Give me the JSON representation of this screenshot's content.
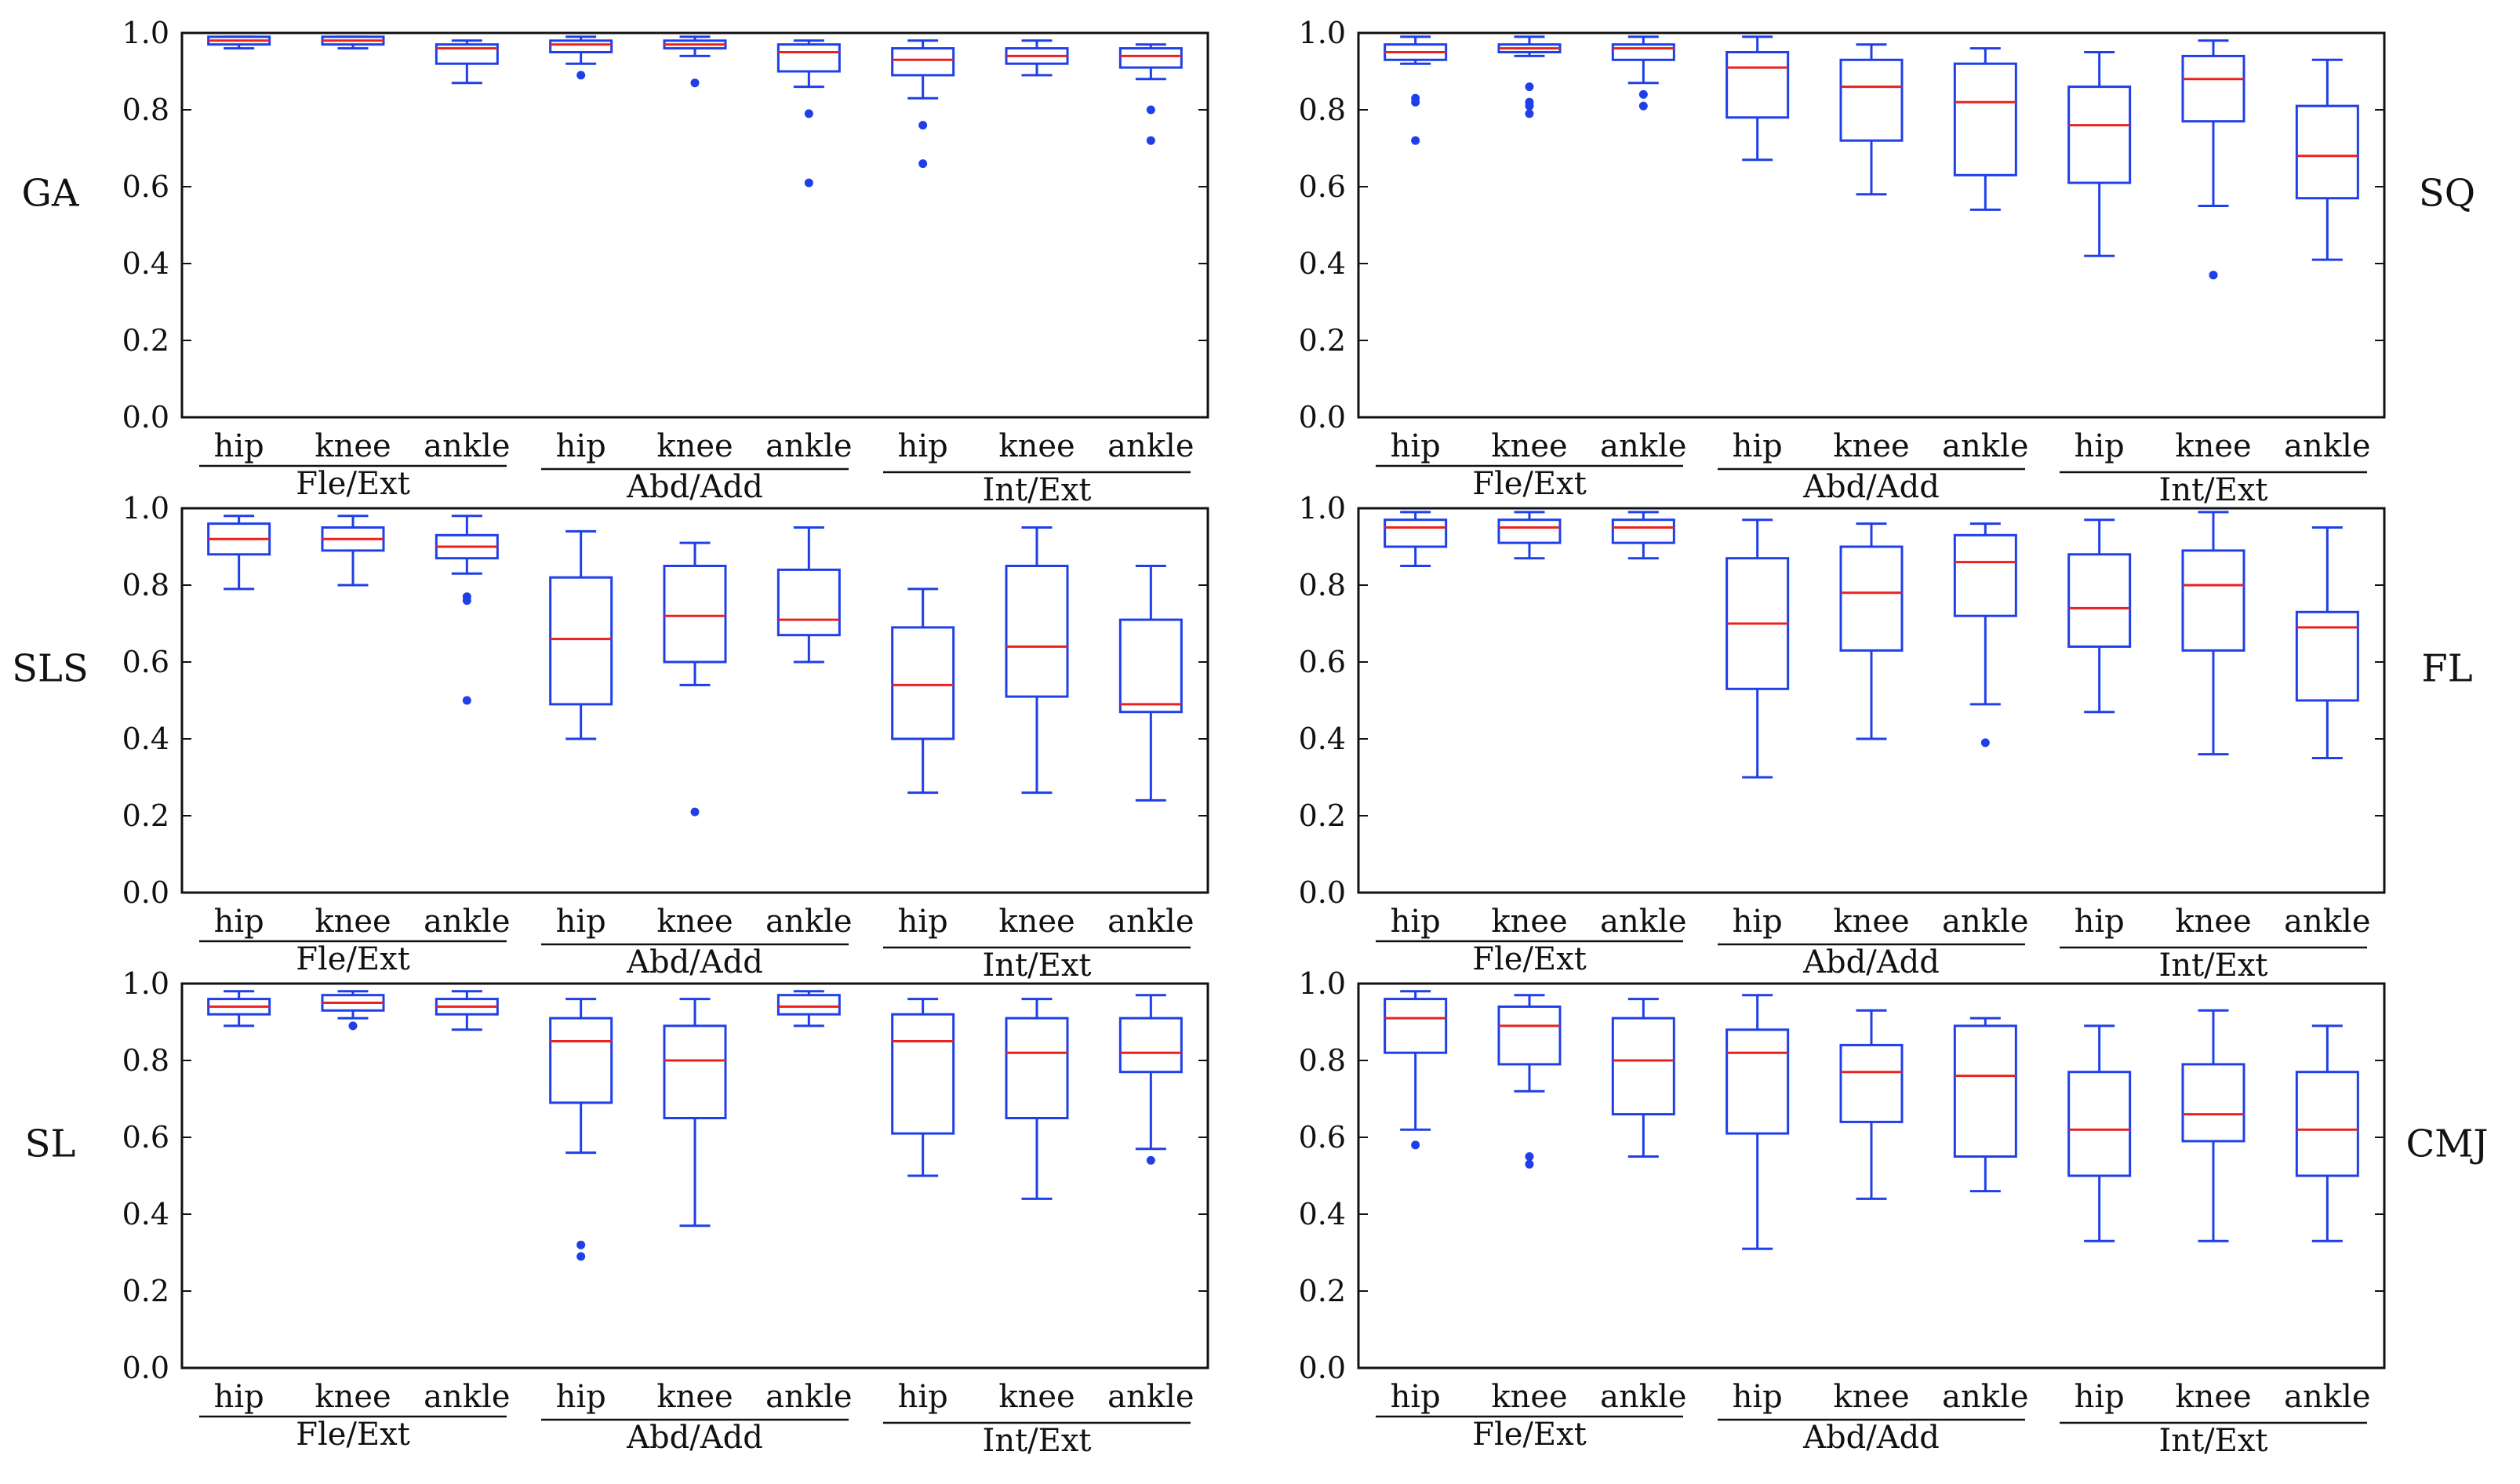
{
  "colors": {
    "box": "#1f3fe8",
    "median": "#e8231f",
    "frame": "#111111",
    "background": "#ffffff"
  },
  "categories": [
    "hip",
    "knee",
    "ankle",
    "hip",
    "knee",
    "ankle",
    "hip",
    "knee",
    "ankle"
  ],
  "groups": [
    "Fle/Ext",
    "Abd/Add",
    "Int/Ext"
  ],
  "chart_data": [
    {
      "type": "box",
      "label": "GA",
      "label_side": "left",
      "ylim": [
        0,
        1.0
      ],
      "yticks": [
        "0.0",
        "0.2",
        "0.4",
        "0.6",
        "0.8",
        "1.0"
      ],
      "boxes": [
        {
          "min": 0.96,
          "q1": 0.97,
          "median": 0.98,
          "q3": 0.99,
          "max": 0.99,
          "outliers": []
        },
        {
          "min": 0.96,
          "q1": 0.97,
          "median": 0.98,
          "q3": 0.99,
          "max": 0.99,
          "outliers": []
        },
        {
          "min": 0.87,
          "q1": 0.92,
          "median": 0.96,
          "q3": 0.97,
          "max": 0.98,
          "outliers": []
        },
        {
          "min": 0.92,
          "q1": 0.95,
          "median": 0.97,
          "q3": 0.98,
          "max": 0.99,
          "outliers": [
            0.89
          ]
        },
        {
          "min": 0.94,
          "q1": 0.96,
          "median": 0.97,
          "q3": 0.98,
          "max": 0.99,
          "outliers": [
            0.87
          ]
        },
        {
          "min": 0.86,
          "q1": 0.9,
          "median": 0.95,
          "q3": 0.97,
          "max": 0.98,
          "outliers": [
            0.79,
            0.61
          ]
        },
        {
          "min": 0.83,
          "q1": 0.89,
          "median": 0.93,
          "q3": 0.96,
          "max": 0.98,
          "outliers": [
            0.76,
            0.66
          ]
        },
        {
          "min": 0.89,
          "q1": 0.92,
          "median": 0.94,
          "q3": 0.96,
          "max": 0.98,
          "outliers": []
        },
        {
          "min": 0.88,
          "q1": 0.91,
          "median": 0.94,
          "q3": 0.96,
          "max": 0.97,
          "outliers": [
            0.8,
            0.72
          ]
        }
      ]
    },
    {
      "type": "box",
      "label": "SQ",
      "label_side": "right",
      "ylim": [
        0,
        1.0
      ],
      "yticks": [
        "0.0",
        "0.2",
        "0.4",
        "0.6",
        "0.8",
        "1.0"
      ],
      "boxes": [
        {
          "min": 0.92,
          "q1": 0.93,
          "median": 0.95,
          "q3": 0.97,
          "max": 0.99,
          "outliers": [
            0.83,
            0.82,
            0.72
          ]
        },
        {
          "min": 0.94,
          "q1": 0.95,
          "median": 0.96,
          "q3": 0.97,
          "max": 0.99,
          "outliers": [
            0.86,
            0.82,
            0.81,
            0.79
          ]
        },
        {
          "min": 0.87,
          "q1": 0.93,
          "median": 0.96,
          "q3": 0.97,
          "max": 0.99,
          "outliers": [
            0.84,
            0.81
          ]
        },
        {
          "min": 0.67,
          "q1": 0.78,
          "median": 0.91,
          "q3": 0.95,
          "max": 0.99,
          "outliers": []
        },
        {
          "min": 0.58,
          "q1": 0.72,
          "median": 0.86,
          "q3": 0.93,
          "max": 0.97,
          "outliers": []
        },
        {
          "min": 0.54,
          "q1": 0.63,
          "median": 0.82,
          "q3": 0.92,
          "max": 0.96,
          "outliers": []
        },
        {
          "min": 0.42,
          "q1": 0.61,
          "median": 0.76,
          "q3": 0.86,
          "max": 0.95,
          "outliers": []
        },
        {
          "min": 0.55,
          "q1": 0.77,
          "median": 0.88,
          "q3": 0.94,
          "max": 0.98,
          "outliers": [
            0.37
          ]
        },
        {
          "min": 0.41,
          "q1": 0.57,
          "median": 0.68,
          "q3": 0.81,
          "max": 0.93,
          "outliers": []
        }
      ]
    },
    {
      "type": "box",
      "label": "SLS",
      "label_side": "left",
      "ylim": [
        0,
        1.0
      ],
      "yticks": [
        "0.0",
        "0.2",
        "0.4",
        "0.6",
        "0.8",
        "1.0"
      ],
      "boxes": [
        {
          "min": 0.79,
          "q1": 0.88,
          "median": 0.92,
          "q3": 0.96,
          "max": 0.98,
          "outliers": []
        },
        {
          "min": 0.8,
          "q1": 0.89,
          "median": 0.92,
          "q3": 0.95,
          "max": 0.98,
          "outliers": []
        },
        {
          "min": 0.83,
          "q1": 0.87,
          "median": 0.9,
          "q3": 0.93,
          "max": 0.98,
          "outliers": [
            0.77,
            0.76,
            0.5
          ]
        },
        {
          "min": 0.4,
          "q1": 0.49,
          "median": 0.66,
          "q3": 0.82,
          "max": 0.94,
          "outliers": []
        },
        {
          "min": 0.54,
          "q1": 0.6,
          "median": 0.72,
          "q3": 0.85,
          "max": 0.91,
          "outliers": [
            0.21
          ]
        },
        {
          "min": 0.6,
          "q1": 0.67,
          "median": 0.71,
          "q3": 0.84,
          "max": 0.95,
          "outliers": []
        },
        {
          "min": 0.26,
          "q1": 0.4,
          "median": 0.54,
          "q3": 0.69,
          "max": 0.79,
          "outliers": []
        },
        {
          "min": 0.26,
          "q1": 0.51,
          "median": 0.64,
          "q3": 0.85,
          "max": 0.95,
          "outliers": []
        },
        {
          "min": 0.24,
          "q1": 0.47,
          "median": 0.49,
          "q3": 0.71,
          "max": 0.85,
          "outliers": []
        }
      ]
    },
    {
      "type": "box",
      "label": "FL",
      "label_side": "right",
      "ylim": [
        0,
        1.0
      ],
      "yticks": [
        "0.0",
        "0.2",
        "0.4",
        "0.6",
        "0.8",
        "1.0"
      ],
      "boxes": [
        {
          "min": 0.85,
          "q1": 0.9,
          "median": 0.95,
          "q3": 0.97,
          "max": 0.99,
          "outliers": []
        },
        {
          "min": 0.87,
          "q1": 0.91,
          "median": 0.95,
          "q3": 0.97,
          "max": 0.99,
          "outliers": []
        },
        {
          "min": 0.87,
          "q1": 0.91,
          "median": 0.95,
          "q3": 0.97,
          "max": 0.99,
          "outliers": []
        },
        {
          "min": 0.3,
          "q1": 0.53,
          "median": 0.7,
          "q3": 0.87,
          "max": 0.97,
          "outliers": []
        },
        {
          "min": 0.4,
          "q1": 0.63,
          "median": 0.78,
          "q3": 0.9,
          "max": 0.96,
          "outliers": []
        },
        {
          "min": 0.49,
          "q1": 0.72,
          "median": 0.86,
          "q3": 0.93,
          "max": 0.96,
          "outliers": [
            0.39
          ]
        },
        {
          "min": 0.47,
          "q1": 0.64,
          "median": 0.74,
          "q3": 0.88,
          "max": 0.97,
          "outliers": []
        },
        {
          "min": 0.36,
          "q1": 0.63,
          "median": 0.8,
          "q3": 0.89,
          "max": 0.99,
          "outliers": []
        },
        {
          "min": 0.35,
          "q1": 0.5,
          "median": 0.69,
          "q3": 0.73,
          "max": 0.95,
          "outliers": []
        }
      ]
    },
    {
      "type": "box",
      "label": "SL",
      "label_side": "left",
      "ylim": [
        0,
        1.0
      ],
      "yticks": [
        "0.0",
        "0.2",
        "0.4",
        "0.6",
        "0.8",
        "1.0"
      ],
      "boxes": [
        {
          "min": 0.89,
          "q1": 0.92,
          "median": 0.94,
          "q3": 0.96,
          "max": 0.98,
          "outliers": []
        },
        {
          "min": 0.91,
          "q1": 0.93,
          "median": 0.95,
          "q3": 0.97,
          "max": 0.98,
          "outliers": [
            0.89
          ]
        },
        {
          "min": 0.88,
          "q1": 0.92,
          "median": 0.94,
          "q3": 0.96,
          "max": 0.98,
          "outliers": []
        },
        {
          "min": 0.56,
          "q1": 0.69,
          "median": 0.85,
          "q3": 0.91,
          "max": 0.96,
          "outliers": [
            0.32,
            0.29
          ]
        },
        {
          "min": 0.37,
          "q1": 0.65,
          "median": 0.8,
          "q3": 0.89,
          "max": 0.96,
          "outliers": []
        },
        {
          "min": 0.89,
          "q1": 0.92,
          "median": 0.94,
          "q3": 0.97,
          "max": 0.98,
          "outliers": []
        },
        {
          "min": 0.5,
          "q1": 0.61,
          "median": 0.85,
          "q3": 0.92,
          "max": 0.96,
          "outliers": []
        },
        {
          "min": 0.44,
          "q1": 0.65,
          "median": 0.82,
          "q3": 0.91,
          "max": 0.96,
          "outliers": []
        },
        {
          "min": 0.57,
          "q1": 0.77,
          "median": 0.82,
          "q3": 0.91,
          "max": 0.97,
          "outliers": [
            0.54
          ]
        }
      ]
    },
    {
      "type": "box",
      "label": "CMJ",
      "label_side": "right",
      "ylim": [
        0,
        1.0
      ],
      "yticks": [
        "0.0",
        "0.2",
        "0.4",
        "0.6",
        "0.8",
        "1.0"
      ],
      "boxes": [
        {
          "min": 0.62,
          "q1": 0.82,
          "median": 0.91,
          "q3": 0.96,
          "max": 0.98,
          "outliers": [
            0.58
          ]
        },
        {
          "min": 0.72,
          "q1": 0.79,
          "median": 0.89,
          "q3": 0.94,
          "max": 0.97,
          "outliers": [
            0.55,
            0.53
          ]
        },
        {
          "min": 0.55,
          "q1": 0.66,
          "median": 0.8,
          "q3": 0.91,
          "max": 0.96,
          "outliers": []
        },
        {
          "min": 0.31,
          "q1": 0.61,
          "median": 0.82,
          "q3": 0.88,
          "max": 0.97,
          "outliers": []
        },
        {
          "min": 0.44,
          "q1": 0.64,
          "median": 0.77,
          "q3": 0.84,
          "max": 0.93,
          "outliers": []
        },
        {
          "min": 0.46,
          "q1": 0.55,
          "median": 0.76,
          "q3": 0.89,
          "max": 0.91,
          "outliers": []
        },
        {
          "min": 0.33,
          "q1": 0.5,
          "median": 0.62,
          "q3": 0.77,
          "max": 0.89,
          "outliers": []
        },
        {
          "min": 0.33,
          "q1": 0.59,
          "median": 0.66,
          "q3": 0.79,
          "max": 0.93,
          "outliers": []
        },
        {
          "min": 0.33,
          "q1": 0.5,
          "median": 0.62,
          "q3": 0.77,
          "max": 0.89,
          "outliers": []
        }
      ]
    }
  ]
}
